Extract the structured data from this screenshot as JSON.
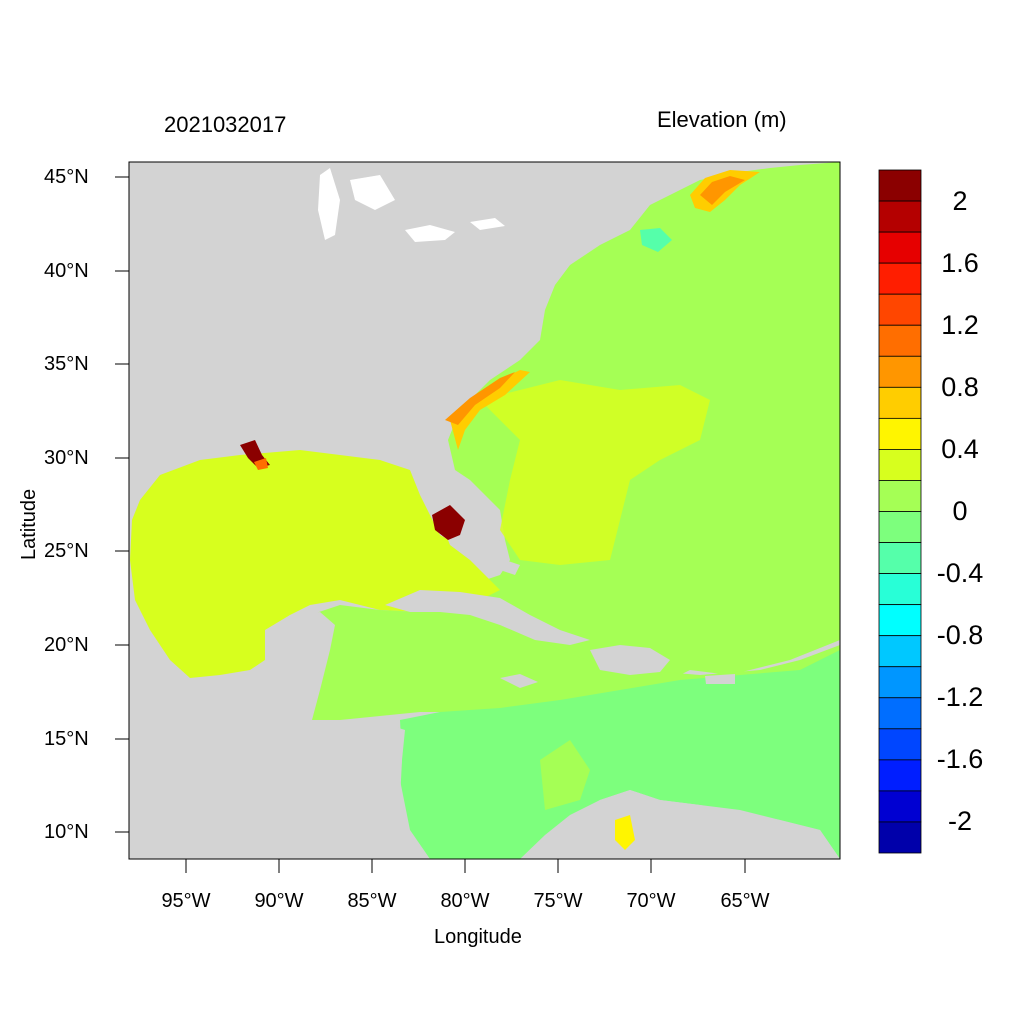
{
  "map": {
    "title_left": "2021032017",
    "title_right": "Elevation (m)",
    "x_axis_label": "Longitude",
    "y_axis_label": "Latitude",
    "lat_ticks": [
      "45°N",
      "40°N",
      "35°N",
      "30°N",
      "25°N",
      "20°N",
      "15°N",
      "10°N"
    ],
    "lon_ticks": [
      "95°W",
      "90°W",
      "85°W",
      "80°W",
      "75°W",
      "70°W",
      "65°W"
    ],
    "land_color": "#d3d3d3",
    "colorbar": {
      "labels": [
        "2",
        "1.6",
        "1.2",
        "0.8",
        "0.4",
        "0",
        "-0.4",
        "-0.8",
        "-1.2",
        "-1.6",
        "-2"
      ],
      "colors": [
        "#8b0000",
        "#b40000",
        "#e60000",
        "#ff1e00",
        "#ff4600",
        "#ff6e00",
        "#ff9600",
        "#ffcd00",
        "#fff500",
        "#d7ff1e",
        "#a5ff55",
        "#7dff7d",
        "#55ffaa",
        "#28ffd7",
        "#00ffff",
        "#00c8ff",
        "#0096ff",
        "#006eff",
        "#0046ff",
        "#001eff",
        "#0000d2",
        "#0000aa"
      ]
    }
  }
}
